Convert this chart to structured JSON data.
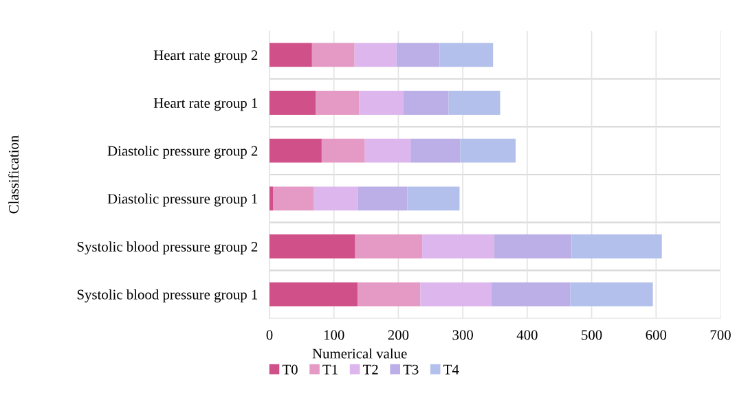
{
  "chart_data": {
    "type": "bar",
    "orientation": "horizontal",
    "stacked": true,
    "xlabel": "Numerical value",
    "ylabel": "Classification",
    "categories": [
      "Heart rate group 2",
      "Heart rate group 1",
      "Diastolic pressure group 2",
      "Diastolic pressure group 1",
      "Systolic blood pressure group 2",
      "Systolic blood pressure group 1"
    ],
    "series": [
      {
        "name": "T0",
        "color": "#d0508a",
        "values": [
          66,
          72,
          81,
          6,
          133,
          137
        ]
      },
      {
        "name": "T1",
        "color": "#e49ac4",
        "values": [
          66,
          67,
          67,
          63,
          104,
          97
        ]
      },
      {
        "name": "T2",
        "color": "#dcb6ec",
        "values": [
          65,
          69,
          71,
          68,
          112,
          110
        ]
      },
      {
        "name": "T3",
        "color": "#bcaee6",
        "values": [
          67,
          70,
          77,
          77,
          120,
          123
        ]
      },
      {
        "name": "T4",
        "color": "#b4c0ec",
        "values": [
          83,
          80,
          86,
          81,
          140,
          128
        ]
      }
    ],
    "xlim": [
      0,
      700
    ],
    "xticks": [
      0,
      100,
      200,
      300,
      400,
      500,
      600,
      700
    ],
    "grid": true,
    "legend": "bottom"
  }
}
